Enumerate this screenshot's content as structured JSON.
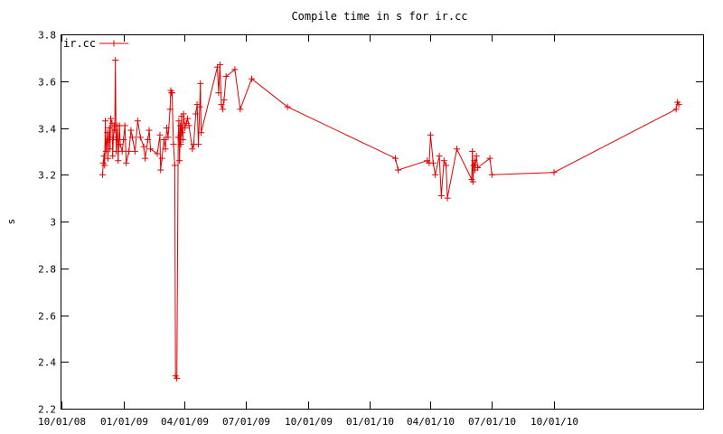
{
  "chart_data": {
    "type": "line",
    "title": "Compile time in s for ir.cc",
    "xlabel": "",
    "ylabel": "s",
    "xlim": [
      "2008-10-01",
      "2011-05-10"
    ],
    "ylim": [
      2.2,
      3.8
    ],
    "grid": false,
    "legend_position": "top-left",
    "colors": {
      "series": "#e00000",
      "axis": "#000000",
      "background": "#ffffff"
    },
    "x_ticks": [
      {
        "date": "2008-10-01",
        "label": "10/01/08"
      },
      {
        "date": "2009-01-01",
        "label": "01/01/09"
      },
      {
        "date": "2009-04-01",
        "label": "04/01/09"
      },
      {
        "date": "2009-07-01",
        "label": "07/01/09"
      },
      {
        "date": "2009-10-01",
        "label": "10/01/09"
      },
      {
        "date": "2010-01-01",
        "label": "01/01/10"
      },
      {
        "date": "2010-04-01",
        "label": "04/01/10"
      },
      {
        "date": "2010-07-01",
        "label": "07/01/10"
      },
      {
        "date": "2010-10-01",
        "label": "10/01/10"
      }
    ],
    "y_ticks": [
      "2.2",
      "2.4",
      "2.6",
      "2.8",
      "3",
      "3.2",
      "3.4",
      "3.6",
      "3.8"
    ],
    "series": [
      {
        "name": "ir.cc",
        "points": [
          [
            "2008-12-01",
            3.2
          ],
          [
            "2008-12-02",
            3.25
          ],
          [
            "2008-12-03",
            3.28
          ],
          [
            "2008-12-04",
            3.24
          ],
          [
            "2008-12-05",
            3.43
          ],
          [
            "2008-12-06",
            3.3
          ],
          [
            "2008-12-08",
            3.38
          ],
          [
            "2008-12-09",
            3.27
          ],
          [
            "2008-12-10",
            3.35
          ],
          [
            "2008-12-11",
            3.4
          ],
          [
            "2008-12-12",
            3.31
          ],
          [
            "2008-12-13",
            3.44
          ],
          [
            "2008-12-15",
            3.42
          ],
          [
            "2008-12-16",
            3.28
          ],
          [
            "2008-12-17",
            3.36
          ],
          [
            "2008-12-18",
            3.41
          ],
          [
            "2008-12-19",
            3.39
          ],
          [
            "2008-12-20",
            3.69
          ],
          [
            "2008-12-21",
            3.3
          ],
          [
            "2008-12-22",
            3.35
          ],
          [
            "2008-12-23",
            3.41
          ],
          [
            "2008-12-24",
            3.26
          ],
          [
            "2008-12-26",
            3.41
          ],
          [
            "2008-12-27",
            3.33
          ],
          [
            "2008-12-30",
            3.3
          ],
          [
            "2009-01-01",
            3.35
          ],
          [
            "2009-01-03",
            3.41
          ],
          [
            "2009-01-05",
            3.25
          ],
          [
            "2009-01-09",
            3.3
          ],
          [
            "2009-01-12",
            3.39
          ],
          [
            "2009-01-14",
            3.36
          ],
          [
            "2009-01-18",
            3.3
          ],
          [
            "2009-01-22",
            3.43
          ],
          [
            "2009-01-26",
            3.36
          ],
          [
            "2009-01-31",
            3.32
          ],
          [
            "2009-02-02",
            3.27
          ],
          [
            "2009-02-06",
            3.35
          ],
          [
            "2009-02-08",
            3.39
          ],
          [
            "2009-02-10",
            3.31
          ],
          [
            "2009-02-20",
            3.29
          ],
          [
            "2009-02-24",
            3.37
          ],
          [
            "2009-02-25",
            3.22
          ],
          [
            "2009-02-27",
            3.27
          ],
          [
            "2009-03-02",
            3.35
          ],
          [
            "2009-03-04",
            3.31
          ],
          [
            "2009-03-06",
            3.4
          ],
          [
            "2009-03-08",
            3.36
          ],
          [
            "2009-03-11",
            3.48
          ],
          [
            "2009-03-12",
            3.56
          ],
          [
            "2009-03-13",
            3.55
          ],
          [
            "2009-03-14",
            3.55
          ],
          [
            "2009-03-16",
            3.33
          ],
          [
            "2009-03-18",
            3.24
          ],
          [
            "2009-03-19",
            2.34
          ],
          [
            "2009-03-21",
            2.33
          ],
          [
            "2009-03-23",
            3.36
          ],
          [
            "2009-03-24",
            3.43
          ],
          [
            "2009-03-25",
            3.26
          ],
          [
            "2009-03-26",
            3.41
          ],
          [
            "2009-03-27",
            3.33
          ],
          [
            "2009-03-28",
            3.45
          ],
          [
            "2009-03-29",
            3.38
          ],
          [
            "2009-03-30",
            3.35
          ],
          [
            "2009-03-31",
            3.46
          ],
          [
            "2009-04-02",
            3.4
          ],
          [
            "2009-04-04",
            3.42
          ],
          [
            "2009-04-06",
            3.44
          ],
          [
            "2009-04-08",
            3.41
          ],
          [
            "2009-04-13",
            3.31
          ],
          [
            "2009-04-15",
            3.33
          ],
          [
            "2009-04-18",
            3.46
          ],
          [
            "2009-04-20",
            3.5
          ],
          [
            "2009-04-22",
            3.33
          ],
          [
            "2009-04-24",
            3.49
          ],
          [
            "2009-04-25",
            3.59
          ],
          [
            "2009-04-26",
            3.38
          ],
          [
            "2009-05-20",
            3.66
          ],
          [
            "2009-05-22",
            3.55
          ],
          [
            "2009-05-24",
            3.67
          ],
          [
            "2009-05-26",
            3.5
          ],
          [
            "2009-05-28",
            3.48
          ],
          [
            "2009-05-30",
            3.52
          ],
          [
            "2009-06-02",
            3.62
          ],
          [
            "2009-06-15",
            3.65
          ],
          [
            "2009-06-23",
            3.48
          ],
          [
            "2009-07-10",
            3.61
          ],
          [
            "2009-09-01",
            3.49
          ],
          [
            "2010-02-08",
            3.27
          ],
          [
            "2010-02-12",
            3.22
          ],
          [
            "2010-03-27",
            3.26
          ],
          [
            "2010-03-30",
            3.25
          ],
          [
            "2010-04-01",
            3.37
          ],
          [
            "2010-04-05",
            3.25
          ],
          [
            "2010-04-08",
            3.2
          ],
          [
            "2010-04-14",
            3.28
          ],
          [
            "2010-04-17",
            3.11
          ],
          [
            "2010-04-21",
            3.26
          ],
          [
            "2010-04-24",
            3.24
          ],
          [
            "2010-04-26",
            3.1
          ],
          [
            "2010-05-10",
            3.31
          ],
          [
            "2010-06-01",
            3.18
          ],
          [
            "2010-06-02",
            3.3
          ],
          [
            "2010-06-03",
            3.17
          ],
          [
            "2010-06-04",
            3.24
          ],
          [
            "2010-06-05",
            3.26
          ],
          [
            "2010-06-06",
            3.22
          ],
          [
            "2010-06-08",
            3.28
          ],
          [
            "2010-06-10",
            3.23
          ],
          [
            "2010-06-28",
            3.27
          ],
          [
            "2010-07-01",
            3.2
          ],
          [
            "2010-10-01",
            3.21
          ],
          [
            "2011-03-31",
            3.48
          ],
          [
            "2011-04-02",
            3.51
          ],
          [
            "2011-04-04",
            3.5
          ]
        ]
      }
    ]
  }
}
